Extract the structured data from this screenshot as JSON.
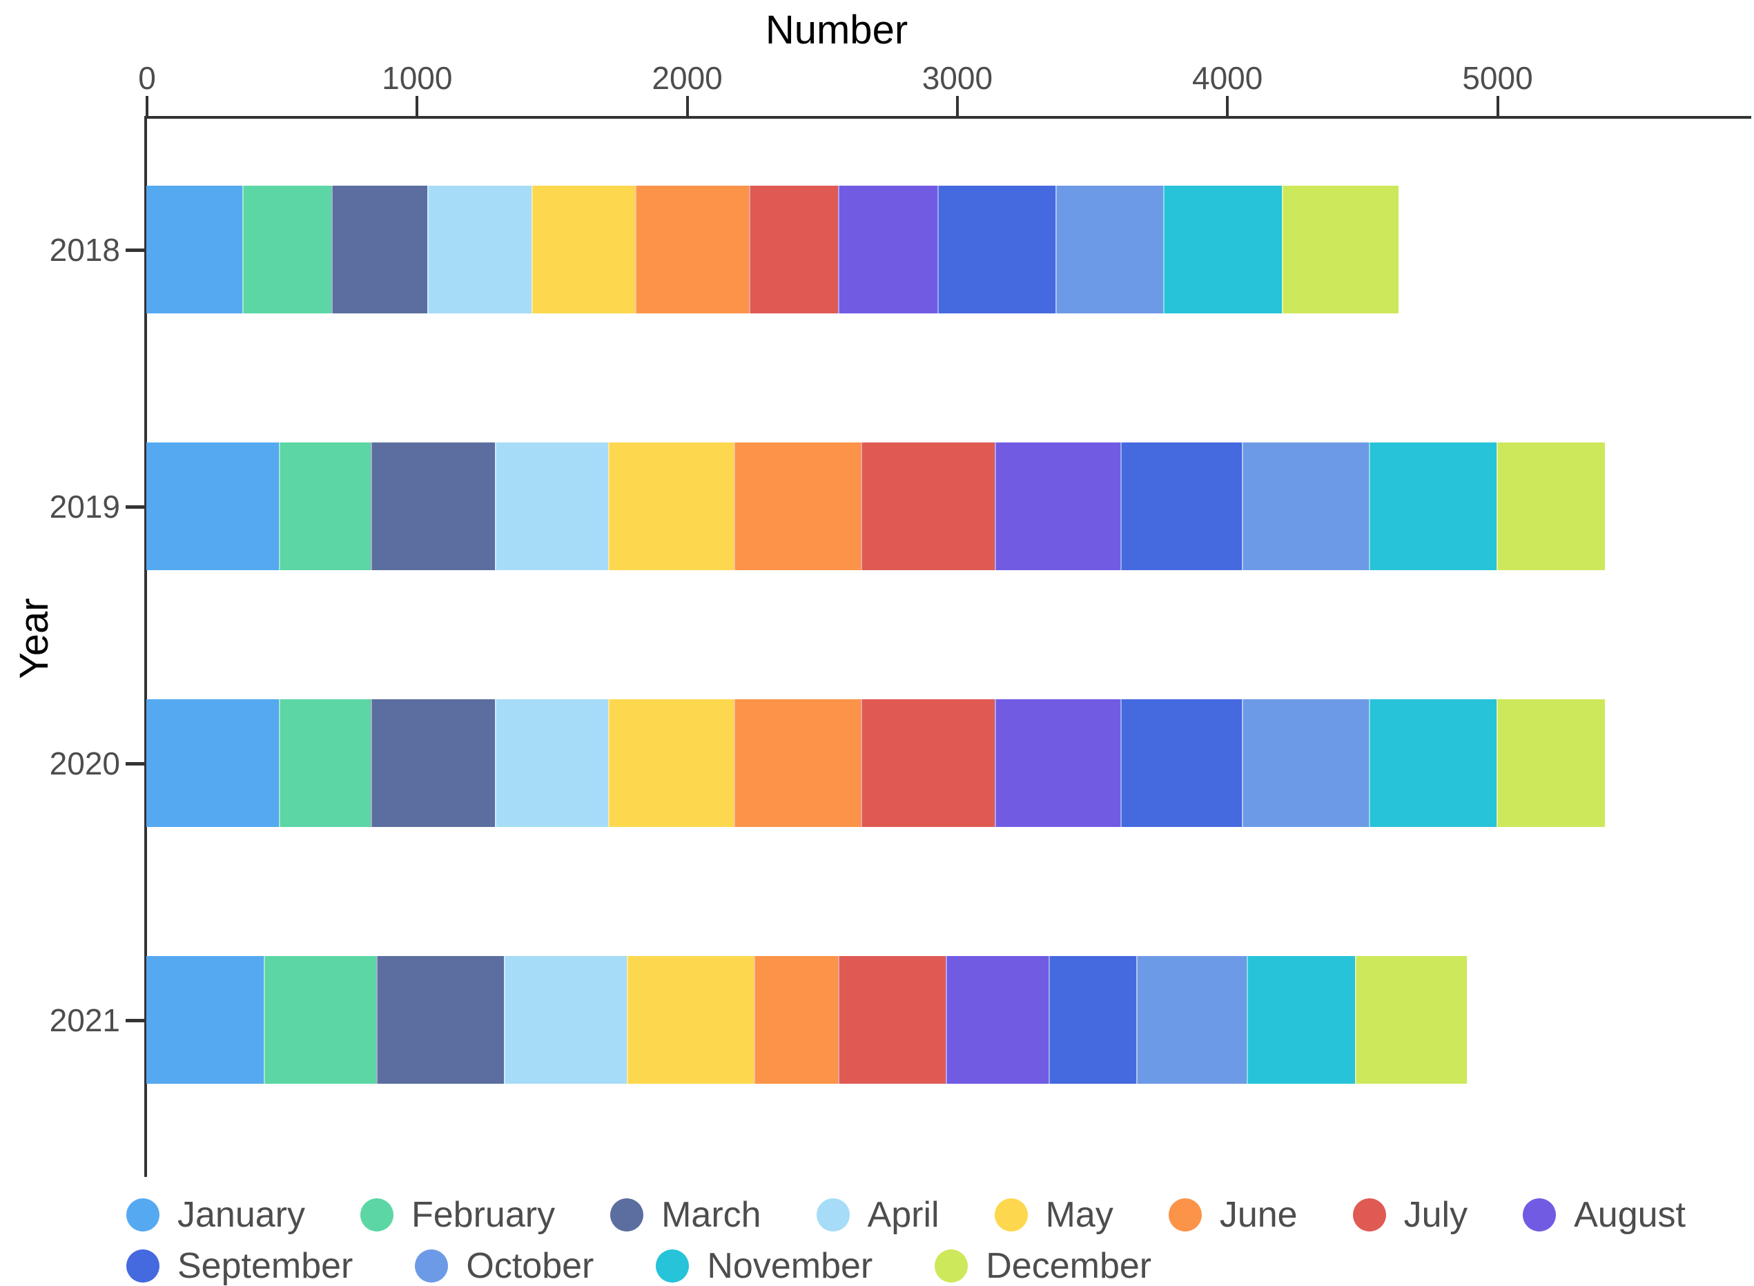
{
  "chart_data": {
    "type": "bar",
    "orientation": "horizontal",
    "stacked": true,
    "xlabel": "Number",
    "ylabel": "Year",
    "categories": [
      "2018",
      "2019",
      "2020",
      "2021"
    ],
    "x_ticks": [
      {
        "label": "0",
        "value": 0
      },
      {
        "label": "1000",
        "value": 1000
      },
      {
        "label": "2000",
        "value": 2000
      },
      {
        "label": "3000",
        "value": 3000
      },
      {
        "label": "4000",
        "value": 4000
      },
      {
        "label": "5000",
        "value": 5000
      }
    ],
    "xlim": [
      0,
      5950
    ],
    "grid": false,
    "legend_position": "bottom",
    "legend_wrap": 8,
    "series": [
      {
        "name": "January",
        "color": "#55A9F1",
        "values": [
          355,
          490,
          490,
          435
        ]
      },
      {
        "name": "February",
        "color": "#5BD6A4",
        "values": [
          330,
          340,
          340,
          415
        ]
      },
      {
        "name": "March",
        "color": "#5B6E9F",
        "values": [
          355,
          460,
          460,
          475
        ]
      },
      {
        "name": "April",
        "color": "#A6DCF7",
        "values": [
          385,
          420,
          420,
          455
        ]
      },
      {
        "name": "May",
        "color": "#FDD84E",
        "values": [
          385,
          465,
          465,
          470
        ]
      },
      {
        "name": "June",
        "color": "#FB9349",
        "values": [
          420,
          470,
          470,
          310
        ]
      },
      {
        "name": "July",
        "color": "#E05A54",
        "values": [
          330,
          495,
          495,
          400
        ]
      },
      {
        "name": "August",
        "color": "#715BE3",
        "values": [
          370,
          465,
          465,
          380
        ]
      },
      {
        "name": "September",
        "color": "#4569DF",
        "values": [
          435,
          450,
          450,
          325
        ]
      },
      {
        "name": "October",
        "color": "#6D9AE6",
        "values": [
          400,
          470,
          470,
          410
        ]
      },
      {
        "name": "November",
        "color": "#27C3D9",
        "values": [
          440,
          475,
          475,
          400
        ]
      },
      {
        "name": "December",
        "color": "#CDE85A",
        "values": [
          430,
          400,
          400,
          415
        ]
      }
    ],
    "totals": [
      4635,
      5400,
      5400,
      4890
    ],
    "axis_line_color": "#333333",
    "tick_label_color": "#4d4d4d",
    "title_color": "#000000",
    "background_color": "#ffffff"
  }
}
